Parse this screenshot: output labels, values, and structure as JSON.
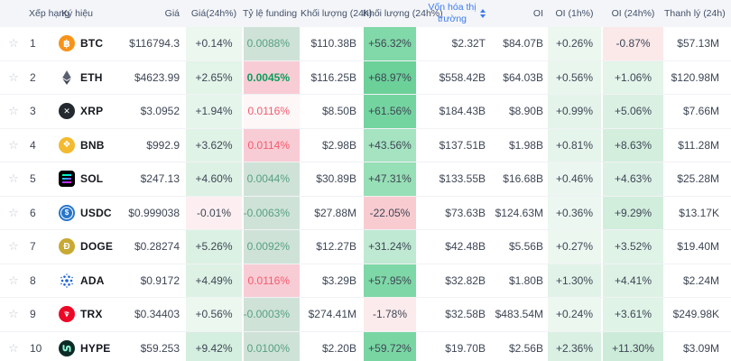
{
  "colors": {
    "accent_blue": "#3b7bf0",
    "green_text": "#099e5c",
    "muted_green_text": "#57a181",
    "red_text": "#f45b6e",
    "header_bg": "#f3f5f8",
    "row_border": "#f1f2f5",
    "funding_green_bg": "#cfe2d8",
    "funding_pink_bg": "#f8ccd5"
  },
  "table": {
    "columns": [
      {
        "key": "fav",
        "label": "",
        "name": "col-header-favorite"
      },
      {
        "key": "rank",
        "label": "Xếp hạng",
        "name": "col-header-rank"
      },
      {
        "key": "symbol",
        "label": "Ký hiệu",
        "name": "col-header-symbol"
      },
      {
        "key": "price",
        "label": "Giá",
        "name": "col-header-price"
      },
      {
        "key": "price24h",
        "label": "Giá(24h%)",
        "name": "col-header-price-change-24h"
      },
      {
        "key": "funding",
        "label": "Tỷ lệ funding",
        "name": "col-header-funding-rate"
      },
      {
        "key": "vol24h",
        "label": "Khối lượng (24h)",
        "name": "col-header-volume-24h"
      },
      {
        "key": "vol24hPct",
        "label": "Khối lượng (24h%)",
        "name": "col-header-volume-change-24h"
      },
      {
        "key": "mcap",
        "label": "Vốn hóa thị trường",
        "name": "col-header-market-cap",
        "sorted": true
      },
      {
        "key": "oi",
        "label": "OI",
        "name": "col-header-open-interest"
      },
      {
        "key": "oi1h",
        "label": "OI (1h%)",
        "name": "col-header-oi-1h"
      },
      {
        "key": "oi24h",
        "label": "OI (24h%)",
        "name": "col-header-oi-24h"
      },
      {
        "key": "liq",
        "label": "Thanh lý (24h)",
        "name": "col-header-liquidation-24h"
      }
    ],
    "rows": [
      {
        "rank": "1",
        "symbol": "BTC",
        "icon": {
          "name": "btc-icon",
          "style": "circle",
          "bg": "#f7931a",
          "fg": "#ffffff",
          "glyph": "฿",
          "size": "11px"
        },
        "price": "$116794.3",
        "price24h": {
          "text": "+0.14%",
          "bg": "#ecf7f0"
        },
        "funding": {
          "text": "0.0088%",
          "bg": "#cfe2d8",
          "color": "#57a181"
        },
        "vol24h": "$110.38B",
        "vol24hPct": {
          "text": "+56.32%",
          "bg": "#81d8a8"
        },
        "mcap": "$2.32T",
        "oi": "$84.07B",
        "oi1h": {
          "text": "+0.26%",
          "bg": "#ecf7f0"
        },
        "oi24h": {
          "text": "-0.87%",
          "bg": "#fbe9ea"
        },
        "liq": "$57.13M"
      },
      {
        "rank": "2",
        "symbol": "ETH",
        "icon": {
          "name": "eth-icon",
          "style": "eth"
        },
        "price": "$4623.99",
        "price24h": {
          "text": "+2.65%",
          "bg": "#e3f4e9"
        },
        "funding": {
          "text": "0.0045%",
          "bg": "#f8ccd5",
          "color": "#099e5c",
          "bold": true
        },
        "vol24h": "$116.25B",
        "vol24hPct": {
          "text": "+68.97%",
          "bg": "#6bd199"
        },
        "mcap": "$558.42B",
        "oi": "$64.03B",
        "oi1h": {
          "text": "+0.56%",
          "bg": "#e9f6ee"
        },
        "oi24h": {
          "text": "+1.06%",
          "bg": "#e3f4e9"
        },
        "liq": "$120.98M"
      },
      {
        "rank": "3",
        "symbol": "XRP",
        "icon": {
          "name": "xrp-icon",
          "style": "circle",
          "bg": "#23292f",
          "fg": "#ffffff",
          "glyph": "✕",
          "size": "9px"
        },
        "price": "$3.0952",
        "price24h": {
          "text": "+1.94%",
          "bg": "#e6f5ec"
        },
        "funding": {
          "text": "0.0116%",
          "bg": "#fdf7f8",
          "color": "#f45b6e"
        },
        "vol24h": "$8.50B",
        "vol24hPct": {
          "text": "+61.56%",
          "bg": "#74d4a0"
        },
        "mcap": "$184.43B",
        "oi": "$8.90B",
        "oi1h": {
          "text": "+0.99%",
          "bg": "#e4f4ea"
        },
        "oi24h": {
          "text": "+5.06%",
          "bg": "#daf0e3"
        },
        "liq": "$7.66M"
      },
      {
        "rank": "4",
        "symbol": "BNB",
        "icon": {
          "name": "bnb-icon",
          "style": "circle",
          "bg": "#f3ba2f",
          "fg": "#ffffff",
          "glyph": "❖",
          "size": "10px"
        },
        "price": "$992.9",
        "price24h": {
          "text": "+3.62%",
          "bg": "#e0f3e7"
        },
        "funding": {
          "text": "0.0114%",
          "bg": "#f8ccd5",
          "color": "#f45b6e"
        },
        "vol24h": "$2.98B",
        "vol24hPct": {
          "text": "+43.56%",
          "bg": "#a5e3c1"
        },
        "mcap": "$137.51B",
        "oi": "$1.98B",
        "oi1h": {
          "text": "+0.81%",
          "bg": "#e6f5ec"
        },
        "oi24h": {
          "text": "+8.63%",
          "bg": "#d3eedd"
        },
        "liq": "$11.28M"
      },
      {
        "rank": "5",
        "symbol": "SOL",
        "icon": {
          "name": "sol-icon",
          "style": "sol"
        },
        "price": "$247.13",
        "price24h": {
          "text": "+4.60%",
          "bg": "#ddf2e5"
        },
        "funding": {
          "text": "0.0044%",
          "bg": "#cfe2d8",
          "color": "#57a181"
        },
        "vol24h": "$30.89B",
        "vol24hPct": {
          "text": "+47.31%",
          "bg": "#97dfb6"
        },
        "mcap": "$133.55B",
        "oi": "$16.68B",
        "oi1h": {
          "text": "+0.46%",
          "bg": "#eaf6ef"
        },
        "oi24h": {
          "text": "+4.63%",
          "bg": "#dcf1e5"
        },
        "liq": "$25.28M"
      },
      {
        "rank": "6",
        "symbol": "USDC",
        "icon": {
          "name": "usdc-icon",
          "style": "usdc",
          "bg": "#2775ca"
        },
        "price": "$0.999038",
        "price24h": {
          "text": "-0.01%",
          "bg": "#fdeff1"
        },
        "funding": {
          "text": "-0.0063%",
          "bg": "#cfe2d8",
          "color": "#57a181"
        },
        "vol24h": "$27.88M",
        "vol24hPct": {
          "text": "-22.05%",
          "bg": "#f8cbd0"
        },
        "mcap": "$73.63B",
        "oi": "$124.63M",
        "oi1h": {
          "text": "+0.36%",
          "bg": "#ebf7f0"
        },
        "oi24h": {
          "text": "+9.29%",
          "bg": "#d1eddc"
        },
        "liq": "$13.17K"
      },
      {
        "rank": "7",
        "symbol": "DOGE",
        "icon": {
          "name": "doge-icon",
          "style": "circle",
          "bg": "#c8a933",
          "fg": "#ffffff",
          "glyph": "Ð",
          "size": "10px"
        },
        "price": "$0.28274",
        "price24h": {
          "text": "+5.26%",
          "bg": "#dbf1e3"
        },
        "funding": {
          "text": "0.0092%",
          "bg": "#cfe2d8",
          "color": "#57a181"
        },
        "vol24h": "$12.27B",
        "vol24hPct": {
          "text": "+31.24%",
          "bg": "#bfe9d2"
        },
        "mcap": "$42.48B",
        "oi": "$5.56B",
        "oi1h": {
          "text": "+0.27%",
          "bg": "#ecf7f0"
        },
        "oi24h": {
          "text": "+3.52%",
          "bg": "#e0f3e7"
        },
        "liq": "$19.40M"
      },
      {
        "rank": "8",
        "symbol": "ADA",
        "icon": {
          "name": "ada-icon",
          "style": "ada"
        },
        "price": "$0.9172",
        "price24h": {
          "text": "+4.49%",
          "bg": "#ddf2e5"
        },
        "funding": {
          "text": "0.0116%",
          "bg": "#f8ccd5",
          "color": "#f45b6e"
        },
        "vol24h": "$3.29B",
        "vol24hPct": {
          "text": "+57.95%",
          "bg": "#7ed7a6"
        },
        "mcap": "$32.82B",
        "oi": "$1.80B",
        "oi1h": {
          "text": "+1.30%",
          "bg": "#e1f3e8"
        },
        "oi24h": {
          "text": "+4.41%",
          "bg": "#ddf2e5"
        },
        "liq": "$2.24M"
      },
      {
        "rank": "9",
        "symbol": "TRX",
        "icon": {
          "name": "trx-icon",
          "style": "trx",
          "bg": "#ec0928"
        },
        "price": "$0.34403",
        "price24h": {
          "text": "+0.56%",
          "bg": "#ebf7ef"
        },
        "funding": {
          "text": "-0.0003%",
          "bg": "#cfe2d8",
          "color": "#57a181"
        },
        "vol24h": "$274.41M",
        "vol24hPct": {
          "text": "-1.78%",
          "bg": "#fcebec"
        },
        "mcap": "$32.58B",
        "oi": "$483.54M",
        "oi1h": {
          "text": "+0.24%",
          "bg": "#ecf7f0"
        },
        "oi24h": {
          "text": "+3.61%",
          "bg": "#dff3e7"
        },
        "liq": "$249.98K"
      },
      {
        "rank": "10",
        "symbol": "HYPE",
        "icon": {
          "name": "hype-icon",
          "style": "hype",
          "bg": "#0d2b26",
          "fg": "#8ef5d2"
        },
        "price": "$59.253",
        "price24h": {
          "text": "+9.42%",
          "bg": "#d4eedf"
        },
        "funding": {
          "text": "0.0100%",
          "bg": "#cfe2d8",
          "color": "#57a181"
        },
        "vol24h": "$2.20B",
        "vol24hPct": {
          "text": "+59.72%",
          "bg": "#79d6a3"
        },
        "mcap": "$19.70B",
        "oi": "$2.56B",
        "oi1h": {
          "text": "+2.36%",
          "bg": "#daf0e3"
        },
        "oi24h": {
          "text": "+11.30%",
          "bg": "#cdebd9"
        },
        "liq": "$3.09M"
      }
    ],
    "partial_row": {
      "price24h": "#eef7f1",
      "funding": "#f8ccd5",
      "vol24hPct": "#79d6a3",
      "oi1h": "#ecf7f0",
      "oi24h": "#e3f4e9"
    }
  }
}
